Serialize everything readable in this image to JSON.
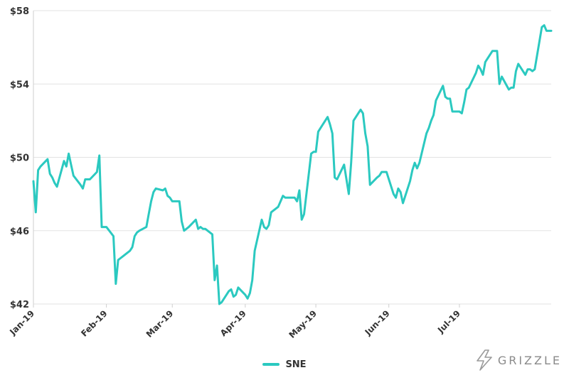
{
  "chart_data": {
    "type": "line",
    "title": "",
    "xlabel": "",
    "ylabel": "",
    "ylim": [
      42,
      58
    ],
    "yticks": [
      "$42",
      "$46",
      "$50",
      "$54",
      "$58"
    ],
    "ytick_values": [
      42,
      46,
      50,
      54,
      58
    ],
    "xticks": [
      "Jan-19",
      "Feb-19",
      "Mar-19",
      "Apr-19",
      "May-19",
      "Jun-19",
      "Jul-19"
    ],
    "xtick_dates": [
      "2019-01-01",
      "2019-02-01",
      "2019-03-01",
      "2019-04-01",
      "2019-05-01",
      "2019-06-01",
      "2019-07-01"
    ],
    "x_range": [
      "2019-01-01",
      "2019-08-09"
    ],
    "grid": "horizontal",
    "legend_position": "bottom-center",
    "series": [
      {
        "name": "SNE",
        "color": "#2bc9c0",
        "dates": [
          "2019-01-01",
          "2019-01-02",
          "2019-01-03",
          "2019-01-04",
          "2019-01-07",
          "2019-01-08",
          "2019-01-09",
          "2019-01-10",
          "2019-01-11",
          "2019-01-14",
          "2019-01-15",
          "2019-01-16",
          "2019-01-17",
          "2019-01-18",
          "2019-01-21",
          "2019-01-22",
          "2019-01-23",
          "2019-01-24",
          "2019-01-25",
          "2019-01-28",
          "2019-01-29",
          "2019-01-30",
          "2019-01-31",
          "2019-02-01",
          "2019-02-04",
          "2019-02-05",
          "2019-02-06",
          "2019-02-07",
          "2019-02-08",
          "2019-02-11",
          "2019-02-12",
          "2019-02-13",
          "2019-02-14",
          "2019-02-15",
          "2019-02-18",
          "2019-02-19",
          "2019-02-20",
          "2019-02-21",
          "2019-02-22",
          "2019-02-25",
          "2019-02-26",
          "2019-02-27",
          "2019-02-28",
          "2019-03-01",
          "2019-03-04",
          "2019-03-05",
          "2019-03-06",
          "2019-03-07",
          "2019-03-08",
          "2019-03-11",
          "2019-03-12",
          "2019-03-13",
          "2019-03-14",
          "2019-03-15",
          "2019-03-18",
          "2019-03-19",
          "2019-03-20",
          "2019-03-21",
          "2019-03-22",
          "2019-03-25",
          "2019-03-26",
          "2019-03-27",
          "2019-03-28",
          "2019-03-29",
          "2019-04-01",
          "2019-04-02",
          "2019-04-03",
          "2019-04-04",
          "2019-04-05",
          "2019-04-08",
          "2019-04-09",
          "2019-04-10",
          "2019-04-11",
          "2019-04-12",
          "2019-04-15",
          "2019-04-16",
          "2019-04-17",
          "2019-04-18",
          "2019-04-19",
          "2019-04-22",
          "2019-04-23",
          "2019-04-24",
          "2019-04-25",
          "2019-04-26",
          "2019-04-29",
          "2019-04-30",
          "2019-05-01",
          "2019-05-02",
          "2019-05-03",
          "2019-05-06",
          "2019-05-07",
          "2019-05-08",
          "2019-05-09",
          "2019-05-10",
          "2019-05-13",
          "2019-05-14",
          "2019-05-15",
          "2019-05-16",
          "2019-05-17",
          "2019-05-20",
          "2019-05-21",
          "2019-05-22",
          "2019-05-23",
          "2019-05-24",
          "2019-05-27",
          "2019-05-28",
          "2019-05-29",
          "2019-05-30",
          "2019-05-31",
          "2019-06-03",
          "2019-06-04",
          "2019-06-05",
          "2019-06-06",
          "2019-06-07",
          "2019-06-10",
          "2019-06-11",
          "2019-06-12",
          "2019-06-13",
          "2019-06-14",
          "2019-06-17",
          "2019-06-18",
          "2019-06-19",
          "2019-06-20",
          "2019-06-21",
          "2019-06-24",
          "2019-06-25",
          "2019-06-26",
          "2019-06-27",
          "2019-06-28",
          "2019-07-01",
          "2019-07-02",
          "2019-07-03",
          "2019-07-04",
          "2019-07-05",
          "2019-07-08",
          "2019-07-09",
          "2019-07-10",
          "2019-07-11",
          "2019-07-12",
          "2019-07-15",
          "2019-07-16",
          "2019-07-17",
          "2019-07-18",
          "2019-07-19",
          "2019-07-22",
          "2019-07-23",
          "2019-07-24",
          "2019-07-25",
          "2019-07-26",
          "2019-07-29",
          "2019-07-30",
          "2019-07-31",
          "2019-08-01",
          "2019-08-02",
          "2019-08-05",
          "2019-08-06",
          "2019-08-07",
          "2019-08-08",
          "2019-08-09"
        ],
        "values": [
          48.7,
          47.0,
          49.3,
          49.5,
          49.9,
          49.1,
          48.9,
          48.6,
          48.4,
          49.8,
          49.5,
          50.2,
          49.6,
          49.0,
          48.5,
          48.3,
          48.8,
          48.8,
          48.8,
          49.2,
          50.1,
          46.2,
          46.2,
          46.2,
          45.7,
          43.1,
          44.4,
          44.5,
          44.6,
          44.9,
          45.1,
          45.7,
          45.9,
          46.0,
          46.2,
          46.9,
          47.6,
          48.1,
          48.3,
          48.2,
          48.3,
          47.9,
          47.8,
          47.6,
          47.6,
          46.5,
          46.0,
          46.1,
          46.2,
          46.6,
          46.1,
          46.2,
          46.1,
          46.1,
          45.8,
          43.3,
          44.1,
          42.0,
          42.1,
          42.7,
          42.8,
          42.4,
          42.5,
          42.9,
          42.5,
          42.3,
          42.6,
          43.3,
          44.9,
          46.6,
          46.2,
          46.1,
          46.3,
          47.0,
          47.3,
          47.6,
          47.9,
          47.8,
          47.8,
          47.8,
          47.6,
          48.2,
          46.6,
          46.9,
          50.2,
          50.3,
          50.3,
          51.4,
          51.6,
          52.2,
          51.8,
          51.3,
          48.9,
          48.8,
          49.6,
          48.8,
          48.0,
          49.7,
          52.0,
          52.6,
          52.4,
          51.3,
          50.6,
          48.5,
          48.9,
          49.0,
          49.2,
          49.2,
          49.2,
          48.0,
          47.8,
          48.3,
          48.1,
          47.5,
          48.7,
          49.3,
          49.7,
          49.4,
          49.7,
          51.3,
          51.6,
          52.0,
          52.3,
          53.1,
          53.9,
          53.3,
          53.2,
          53.2,
          52.5,
          52.5,
          52.4,
          53.0,
          53.7,
          53.8,
          54.6,
          55.0,
          54.8,
          54.5,
          55.2,
          55.8,
          55.8,
          55.8,
          54.0,
          54.4,
          53.7,
          53.8,
          53.8,
          54.7,
          55.1,
          54.5,
          54.8,
          54.8,
          54.7,
          54.8,
          57.1,
          57.2,
          56.9,
          56.9,
          56.9
        ]
      }
    ]
  },
  "legend": {
    "label": "SNE",
    "color": "#2bc9c0"
  },
  "logo": {
    "text": "GRIZZLE",
    "icon": "grizzle-logo-icon"
  }
}
